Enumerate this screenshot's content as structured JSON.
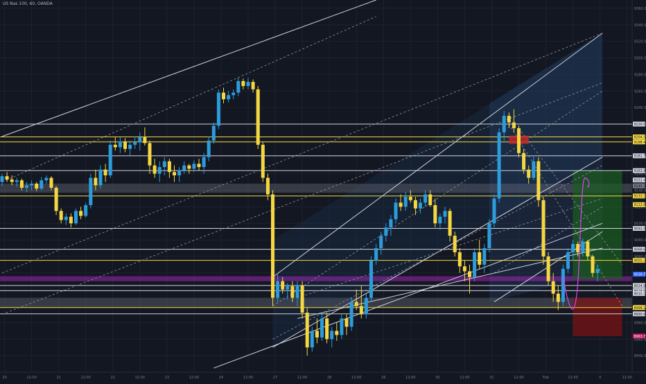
{
  "chart_data": {
    "type": "candlestick",
    "title": "US Nas 100, 60, OANDA",
    "ylim": [
      8920,
      9370
    ],
    "y_ticks": [
      "9360.0",
      "9340.0",
      "9320.0",
      "9300.0",
      "9280.0",
      "9260.0",
      "9240.0",
      "9220.0",
      "9200.0",
      "9180.0",
      "9160.0",
      "9140.0",
      "9120.0",
      "9100.0",
      "9080.0",
      "9060.0",
      "9040.0",
      "9020.0",
      "9000.0",
      "8980.0",
      "8960.0",
      "8940.0"
    ],
    "x_ticks": [
      {
        "t": 0.5,
        "label": "20"
      },
      {
        "t": 6,
        "label": "12:00"
      },
      {
        "t": 11.5,
        "label": "21"
      },
      {
        "t": 17,
        "label": "12:00"
      },
      {
        "t": 22.5,
        "label": "22"
      },
      {
        "t": 28,
        "label": "12:00"
      },
      {
        "t": 33.5,
        "label": "23"
      },
      {
        "t": 39,
        "label": "12:00"
      },
      {
        "t": 44.5,
        "label": "24"
      },
      {
        "t": 50,
        "label": "12:00"
      },
      {
        "t": 55.5,
        "label": "27"
      },
      {
        "t": 61,
        "label": "12:00"
      },
      {
        "t": 66.5,
        "label": "28"
      },
      {
        "t": 72,
        "label": "12:00"
      },
      {
        "t": 77.5,
        "label": "29"
      },
      {
        "t": 83,
        "label": "12:00"
      },
      {
        "t": 88.5,
        "label": "30"
      },
      {
        "t": 94,
        "label": "12:00"
      },
      {
        "t": 99.5,
        "label": "31"
      },
      {
        "t": 105,
        "label": "12:00"
      },
      {
        "t": 110.5,
        "label": "Feb"
      },
      {
        "t": 116,
        "label": "12:00"
      },
      {
        "t": 121.5,
        "label": "4"
      },
      {
        "t": 127,
        "label": "12:00"
      }
    ],
    "candles": [
      [
        0,
        9150,
        9160,
        9145,
        9157
      ],
      [
        1,
        9157,
        9162,
        9150,
        9153
      ],
      [
        2,
        9153,
        9158,
        9146,
        9150
      ],
      [
        3,
        9150,
        9155,
        9144,
        9152
      ],
      [
        4,
        9152,
        9154,
        9140,
        9143
      ],
      [
        5,
        9143,
        9150,
        9138,
        9146
      ],
      [
        6,
        9146,
        9152,
        9140,
        9148
      ],
      [
        7,
        9148,
        9150,
        9139,
        9142
      ],
      [
        8,
        9142,
        9156,
        9140,
        9152
      ],
      [
        9,
        9152,
        9158,
        9148,
        9155
      ],
      [
        10,
        9155,
        9157,
        9140,
        9143
      ],
      [
        11,
        9143,
        9145,
        9110,
        9115
      ],
      [
        12,
        9115,
        9118,
        9100,
        9104
      ],
      [
        13,
        9104,
        9112,
        9098,
        9108
      ],
      [
        14,
        9108,
        9112,
        9095,
        9100
      ],
      [
        15,
        9100,
        9118,
        9098,
        9115
      ],
      [
        16,
        9115,
        9120,
        9105,
        9109
      ],
      [
        17,
        9109,
        9125,
        9107,
        9122
      ],
      [
        18,
        9122,
        9160,
        9118,
        9155
      ],
      [
        19,
        9155,
        9165,
        9140,
        9146
      ],
      [
        20,
        9146,
        9170,
        9142,
        9165
      ],
      [
        21,
        9165,
        9172,
        9150,
        9158
      ],
      [
        22,
        9158,
        9200,
        9155,
        9195
      ],
      [
        23,
        9195,
        9205,
        9188,
        9192
      ],
      [
        24,
        9192,
        9204,
        9185,
        9199
      ],
      [
        25,
        9199,
        9203,
        9186,
        9190
      ],
      [
        26,
        9190,
        9200,
        9182,
        9195
      ],
      [
        27,
        9195,
        9205,
        9190,
        9198
      ],
      [
        28,
        9198,
        9210,
        9188,
        9204
      ],
      [
        29,
        9204,
        9216,
        9194,
        9197
      ],
      [
        30,
        9197,
        9200,
        9160,
        9170
      ],
      [
        31,
        9170,
        9178,
        9155,
        9160
      ],
      [
        32,
        9160,
        9175,
        9150,
        9168
      ],
      [
        33,
        9168,
        9180,
        9158,
        9175
      ],
      [
        34,
        9175,
        9178,
        9155,
        9162
      ],
      [
        35,
        9162,
        9170,
        9150,
        9158
      ],
      [
        36,
        9158,
        9168,
        9150,
        9164
      ],
      [
        37,
        9164,
        9175,
        9160,
        9170
      ],
      [
        38,
        9170,
        9172,
        9160,
        9166
      ],
      [
        39,
        9166,
        9176,
        9162,
        9172
      ],
      [
        40,
        9172,
        9178,
        9164,
        9168
      ],
      [
        41,
        9168,
        9185,
        9160,
        9180
      ],
      [
        42,
        9180,
        9205,
        9175,
        9200
      ],
      [
        43,
        9200,
        9222,
        9196,
        9218
      ],
      [
        44,
        9218,
        9262,
        9214,
        9258
      ],
      [
        45,
        9258,
        9264,
        9245,
        9250
      ],
      [
        46,
        9250,
        9260,
        9246,
        9255
      ],
      [
        47,
        9255,
        9262,
        9250,
        9258
      ],
      [
        48,
        9258,
        9276,
        9254,
        9272
      ],
      [
        49,
        9272,
        9275,
        9262,
        9266
      ],
      [
        50,
        9266,
        9276,
        9262,
        9271
      ],
      [
        51,
        9271,
        9274,
        9258,
        9262
      ],
      [
        52,
        9262,
        9266,
        9190,
        9195
      ],
      [
        53,
        9195,
        9198,
        9150,
        9155
      ],
      [
        54,
        9155,
        9160,
        9128,
        9135
      ],
      [
        55,
        9135,
        9140,
        9000,
        9010
      ],
      [
        56,
        9010,
        9040,
        9005,
        9030
      ],
      [
        57,
        9030,
        9035,
        9015,
        9020
      ],
      [
        58,
        9020,
        9028,
        9008,
        9024
      ],
      [
        59,
        9024,
        9030,
        9005,
        9010
      ],
      [
        60,
        9010,
        9030,
        9000,
        9025
      ],
      [
        61,
        9025,
        9030,
        8985,
        8992
      ],
      [
        62,
        8992,
        8998,
        8940,
        8950
      ],
      [
        63,
        8950,
        8975,
        8945,
        8970
      ],
      [
        64,
        8970,
        8985,
        8955,
        8962
      ],
      [
        65,
        8962,
        8990,
        8958,
        8985
      ],
      [
        66,
        8985,
        8992,
        8955,
        8960
      ],
      [
        67,
        8960,
        8975,
        8950,
        8970
      ],
      [
        68,
        8970,
        8980,
        8958,
        8965
      ],
      [
        69,
        8965,
        8990,
        8960,
        8985
      ],
      [
        70,
        8985,
        8990,
        8965,
        8975
      ],
      [
        71,
        8975,
        9010,
        8970,
        9005
      ],
      [
        72,
        9005,
        9020,
        8995,
        9000
      ],
      [
        73,
        9000,
        9025,
        8985,
        8990
      ],
      [
        74,
        8990,
        9015,
        8985,
        9010
      ],
      [
        75,
        9010,
        9060,
        9005,
        9055
      ],
      [
        76,
        9055,
        9075,
        9050,
        9070
      ],
      [
        77,
        9070,
        9090,
        9062,
        9085
      ],
      [
        78,
        9085,
        9100,
        9078,
        9095
      ],
      [
        79,
        9095,
        9110,
        9085,
        9105
      ],
      [
        80,
        9105,
        9130,
        9100,
        9125
      ],
      [
        81,
        9125,
        9135,
        9115,
        9120
      ],
      [
        82,
        9120,
        9138,
        9115,
        9132
      ],
      [
        83,
        9132,
        9140,
        9125,
        9128
      ],
      [
        84,
        9128,
        9132,
        9110,
        9118
      ],
      [
        85,
        9118,
        9130,
        9112,
        9125
      ],
      [
        86,
        9125,
        9140,
        9120,
        9135
      ],
      [
        87,
        9135,
        9140,
        9120,
        9122
      ],
      [
        88,
        9122,
        9130,
        9095,
        9100
      ],
      [
        89,
        9100,
        9112,
        9092,
        9108
      ],
      [
        90,
        9108,
        9120,
        9100,
        9115
      ],
      [
        91,
        9115,
        9118,
        9078,
        9085
      ],
      [
        92,
        9085,
        9090,
        9060,
        9065
      ],
      [
        93,
        9065,
        9070,
        9040,
        9048
      ],
      [
        94,
        9048,
        9055,
        9030,
        9042
      ],
      [
        95,
        9042,
        9050,
        9015,
        9035
      ],
      [
        96,
        9035,
        9070,
        9030,
        9065
      ],
      [
        97,
        9065,
        9080,
        9045,
        9050
      ],
      [
        98,
        9050,
        9075,
        9040,
        9070
      ],
      [
        99,
        9070,
        9105,
        9065,
        9100
      ],
      [
        100,
        9100,
        9135,
        9095,
        9130
      ],
      [
        101,
        9130,
        9215,
        9125,
        9210
      ],
      [
        102,
        9210,
        9236,
        9200,
        9230
      ],
      [
        103,
        9230,
        9234,
        9215,
        9222
      ],
      [
        104,
        9222,
        9238,
        9210,
        9215
      ],
      [
        105,
        9215,
        9218,
        9180,
        9185
      ],
      [
        106,
        9185,
        9190,
        9160,
        9165
      ],
      [
        107,
        9165,
        9170,
        9148,
        9155
      ],
      [
        108,
        9155,
        9182,
        9152,
        9175
      ],
      [
        109,
        9175,
        9180,
        9120,
        9128
      ],
      [
        110,
        9128,
        9132,
        9050,
        9060
      ],
      [
        111,
        9060,
        9065,
        9025,
        9030
      ],
      [
        112,
        9030,
        9040,
        9005,
        9015
      ],
      [
        113,
        9015,
        9025,
        8995,
        9005
      ],
      [
        114,
        9005,
        9050,
        9000,
        9045
      ],
      [
        115,
        9045,
        9070,
        9040,
        9065
      ],
      [
        116,
        9065,
        9080,
        9055,
        9075
      ],
      [
        117,
        9075,
        9078,
        9060,
        9065
      ],
      [
        118,
        9065,
        9082,
        9060,
        9078
      ],
      [
        119,
        9078,
        9080,
        9055,
        9060
      ],
      [
        120,
        9060,
        9062,
        9035,
        9040
      ],
      [
        121,
        9040,
        9050,
        9030,
        9045
      ]
    ],
    "price_labels": [
      {
        "price": 9220.0,
        "label": "9220.0"
      },
      {
        "price": 9204.5,
        "label": "9204.5"
      },
      {
        "price": 9198.4,
        "label": "9198.4"
      },
      {
        "price": 9181.7,
        "label": "9181.7"
      },
      {
        "price": 9163.8,
        "label": "9163.8"
      },
      {
        "price": 9152.4,
        "label": "9152.4"
      },
      {
        "price": 9145.3,
        "label": "9145.3"
      },
      {
        "price": 9133.1,
        "label": "9133.1"
      },
      {
        "price": 9122.6,
        "label": "9122.6"
      },
      {
        "price": 9093.9,
        "label": "9093.9"
      },
      {
        "price": 9068.6,
        "label": "9068.6"
      },
      {
        "price": 9055.2,
        "label": "9055.2"
      },
      {
        "price": 9038.5,
        "label": "9038.5"
      },
      {
        "price": 9024.9,
        "label": "9024.9"
      },
      {
        "price": 9018.6,
        "label": "9018.6"
      },
      {
        "price": 9015.1,
        "label": "9015.1"
      },
      {
        "price": 8998.1,
        "label": "8998.1"
      },
      {
        "price": 8990.6,
        "label": "8990.6"
      },
      {
        "price": 8963.7,
        "label": "8963.7"
      }
    ],
    "horizontal_lines": [
      {
        "price": 9220.0,
        "color": "#d1d4dc"
      },
      {
        "price": 9204.5,
        "color": "#f5d742"
      },
      {
        "price": 9198.4,
        "color": "#f5d742"
      },
      {
        "price": 9181.7,
        "color": "#d1d4dc"
      },
      {
        "price": 9163.8,
        "color": "#d1d4dc"
      },
      {
        "price": 9133.1,
        "color": "#f5d742"
      },
      {
        "price": 9093.9,
        "color": "#d1d4dc"
      },
      {
        "price": 9068.6,
        "color": "#d1d4dc"
      },
      {
        "price": 9055.2,
        "color": "#f5d742"
      },
      {
        "price": 9024.9,
        "color": "#d1d4dc"
      },
      {
        "price": 9018.6,
        "color": "#d1d4dc"
      },
      {
        "price": 8998.1,
        "color": "#f5d742"
      },
      {
        "price": 8990.6,
        "color": "#d1d4dc"
      }
    ],
    "colors": {
      "up": "#2d9cdb",
      "down": "#f5d742",
      "background": "#131722",
      "magenta": "#c2185b",
      "target_zone": "#1b5e20",
      "stop_zone": "#7f1212"
    }
  }
}
